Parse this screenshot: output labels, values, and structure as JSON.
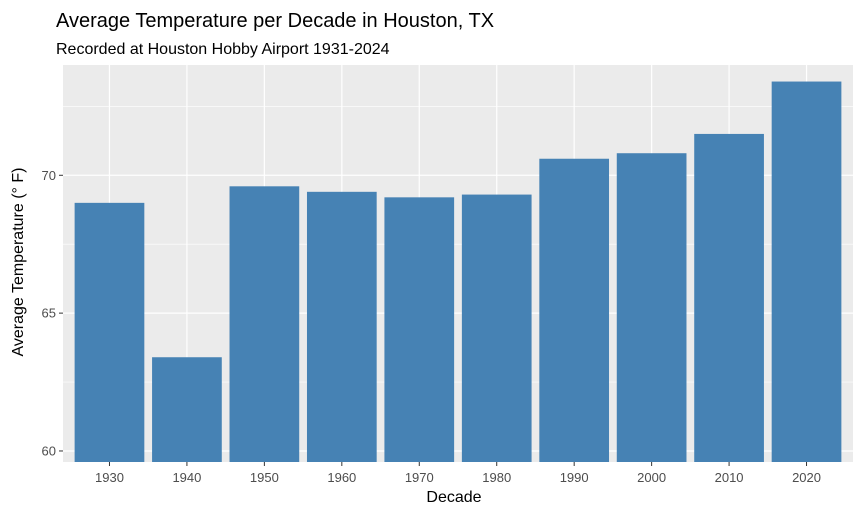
{
  "chart_data": {
    "type": "bar",
    "title": "Average Temperature per Decade in Houston, TX",
    "subtitle": "Recorded at Houston Hobby Airport 1931-2024",
    "xlabel": "Decade",
    "ylabel": "Average Temperature (° F)",
    "categories": [
      "1930",
      "1940",
      "1950",
      "1960",
      "1970",
      "1980",
      "1990",
      "2000",
      "2010",
      "2020"
    ],
    "values": [
      69.0,
      63.4,
      69.6,
      69.4,
      69.2,
      69.3,
      70.6,
      70.8,
      71.5,
      73.4
    ],
    "ylim": [
      59.6,
      74.0
    ],
    "y_ticks": [
      60,
      65,
      70
    ],
    "y_tick_labels": [
      "60",
      "65",
      "70"
    ],
    "bar_color": "#4682B4",
    "panel_background": "#EBEBEB",
    "grid_color": "#FFFFFF",
    "grid": true
  }
}
